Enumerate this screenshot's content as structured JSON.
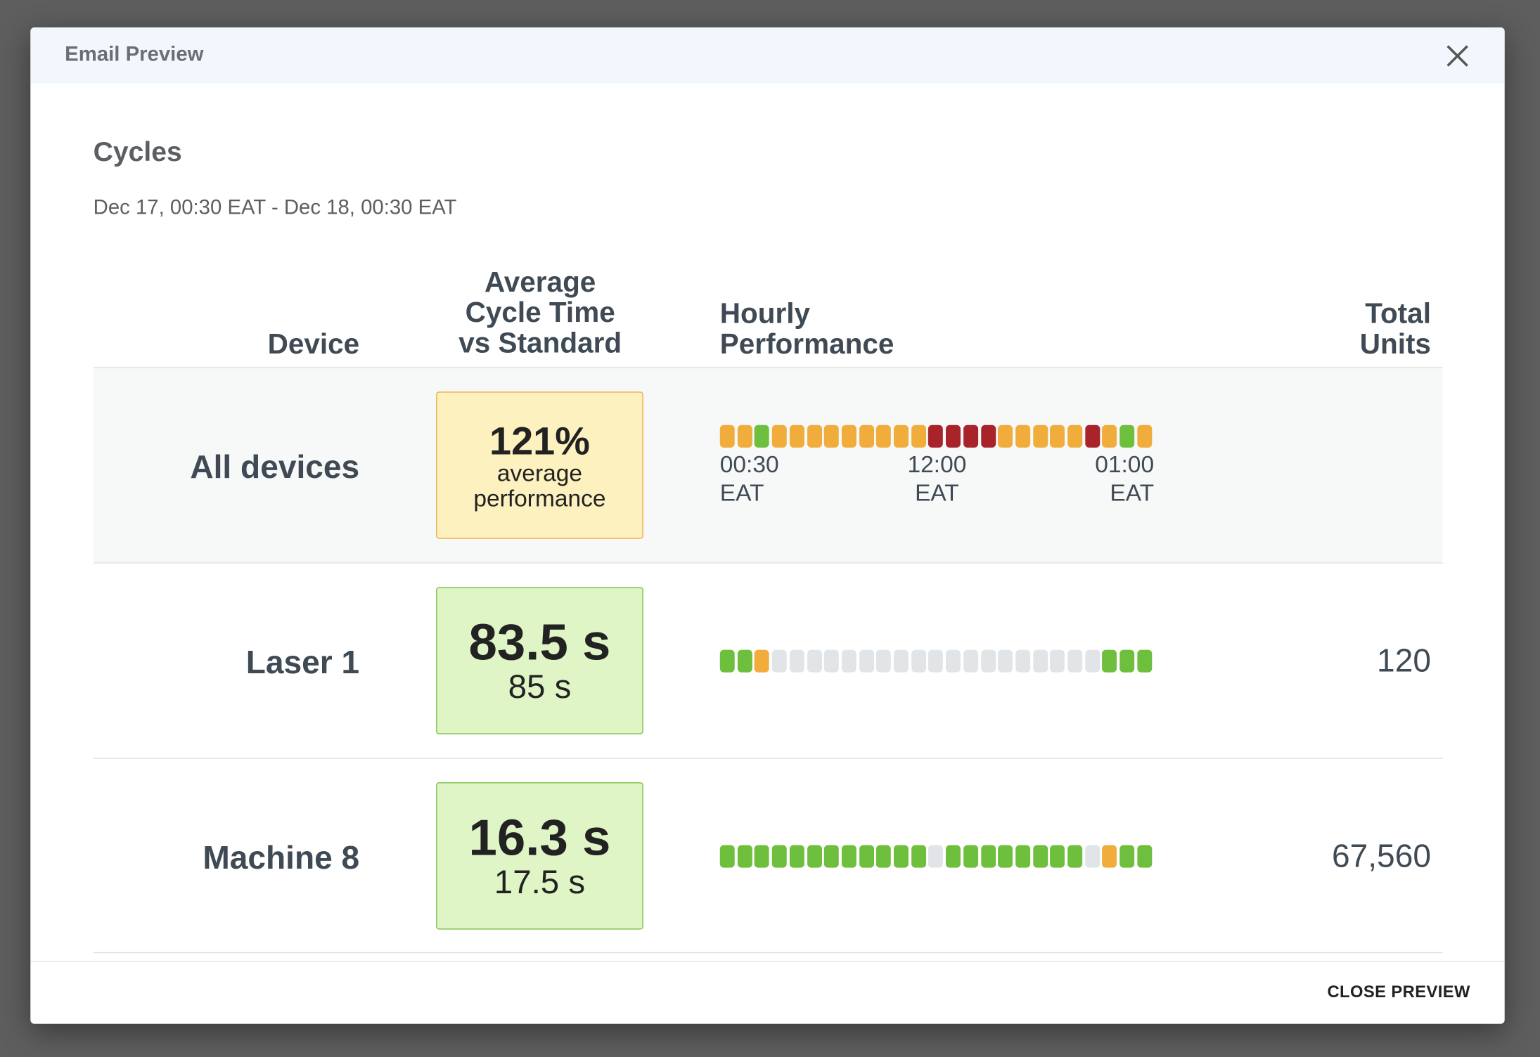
{
  "dialog": {
    "title": "Email Preview",
    "close_button": "CLOSE PREVIEW"
  },
  "report": {
    "title": "Cycles",
    "date_range": "Dec 17, 00:30 EAT - Dec 18, 00:30 EAT"
  },
  "table": {
    "headers": [
      "Device",
      "Average\nCycle Time\nvs Standard",
      "Hourly\nPerformance",
      "Total\nUnits"
    ],
    "axis_labels": [
      "00:30\nEAT",
      "12:00\nEAT",
      "01:00\nEAT"
    ],
    "rows": [
      {
        "device": "All devices",
        "metric": "121%",
        "sub": "average\nperformance",
        "box_color": "#fdf1c0",
        "box_border": "#f0ad3c",
        "hourly": [
          "#f0ad3c",
          "#f0ad3c",
          "#6fbf3f",
          "#f0ad3c",
          "#f0ad3c",
          "#f0ad3c",
          "#f0ad3c",
          "#f0ad3c",
          "#f0ad3c",
          "#f0ad3c",
          "#f0ad3c",
          "#f0ad3c",
          "#a8232a",
          "#a8232a",
          "#a8232a",
          "#a8232a",
          "#f0ad3c",
          "#f0ad3c",
          "#f0ad3c",
          "#f0ad3c",
          "#f0ad3c",
          "#a8232a",
          "#f0ad3c",
          "#6fbf3f",
          "#f0ad3c"
        ]
      },
      {
        "device": "Laser 1",
        "metric": "83.5 s",
        "sub": "85 s",
        "box_color": "#dff5c6",
        "box_border": "#7ac142",
        "total": "120",
        "hourly": [
          "#6fbf3f",
          "#6fbf3f",
          "#f0ad3c",
          "#e2e5e8",
          "#e2e5e8",
          "#e2e5e8",
          "#e2e5e8",
          "#e2e5e8",
          "#e2e5e8",
          "#e2e5e8",
          "#e2e5e8",
          "#e2e5e8",
          "#e2e5e8",
          "#e2e5e8",
          "#e2e5e8",
          "#e2e5e8",
          "#e2e5e8",
          "#e2e5e8",
          "#e2e5e8",
          "#e2e5e8",
          "#e2e5e8",
          "#e2e5e8",
          "#6fbf3f",
          "#6fbf3f",
          "#6fbf3f"
        ]
      },
      {
        "device": "Machine 8",
        "metric": "16.3 s",
        "sub": "17.5 s",
        "box_color": "#dff5c6",
        "box_border": "#7ac142",
        "total": "67,560",
        "hourly": [
          "#6fbf3f",
          "#6fbf3f",
          "#6fbf3f",
          "#6fbf3f",
          "#6fbf3f",
          "#6fbf3f",
          "#6fbf3f",
          "#6fbf3f",
          "#6fbf3f",
          "#6fbf3f",
          "#6fbf3f",
          "#6fbf3f",
          "#e2e5e8",
          "#6fbf3f",
          "#6fbf3f",
          "#6fbf3f",
          "#6fbf3f",
          "#6fbf3f",
          "#6fbf3f",
          "#6fbf3f",
          "#6fbf3f",
          "#e2e5e8",
          "#f0ad3c",
          "#6fbf3f",
          "#6fbf3f"
        ]
      }
    ]
  }
}
